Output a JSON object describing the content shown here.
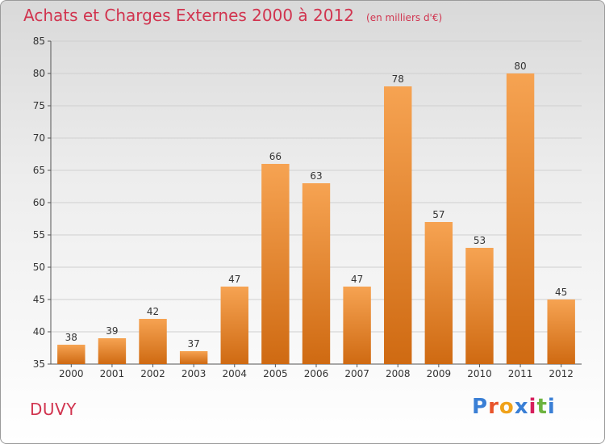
{
  "title": "Achats et Charges Externes 2000 à 2012",
  "subtitle": "(en milliers d'€)",
  "commune": "DUVY",
  "logo": {
    "text": "Proxiti",
    "letter_colors": [
      "#3a7fd5",
      "#e8542b",
      "#f0a21a",
      "#3a7fd5",
      "#d61e5c",
      "#6db33f",
      "#3a7fd5"
    ]
  },
  "colors": {
    "bar_top": "#f6a352",
    "bar_bottom": "#cf6a12",
    "axis": "#555555",
    "grid": "#cfcfcf",
    "title": "#d1344f"
  },
  "chart_data": {
    "type": "bar",
    "categories": [
      "2000",
      "2001",
      "2002",
      "2003",
      "2004",
      "2005",
      "2006",
      "2007",
      "2008",
      "2009",
      "2010",
      "2011",
      "2012"
    ],
    "values": [
      38,
      39,
      42,
      37,
      47,
      66,
      63,
      47,
      78,
      57,
      53,
      80,
      45
    ],
    "title": "Achats et Charges Externes 2000 à 2012",
    "subtitle": "(en milliers d'€)",
    "ylim": [
      35,
      85
    ],
    "yticks": [
      35,
      40,
      45,
      50,
      55,
      60,
      65,
      70,
      75,
      80,
      85
    ],
    "grid": true,
    "data_labels": true
  }
}
